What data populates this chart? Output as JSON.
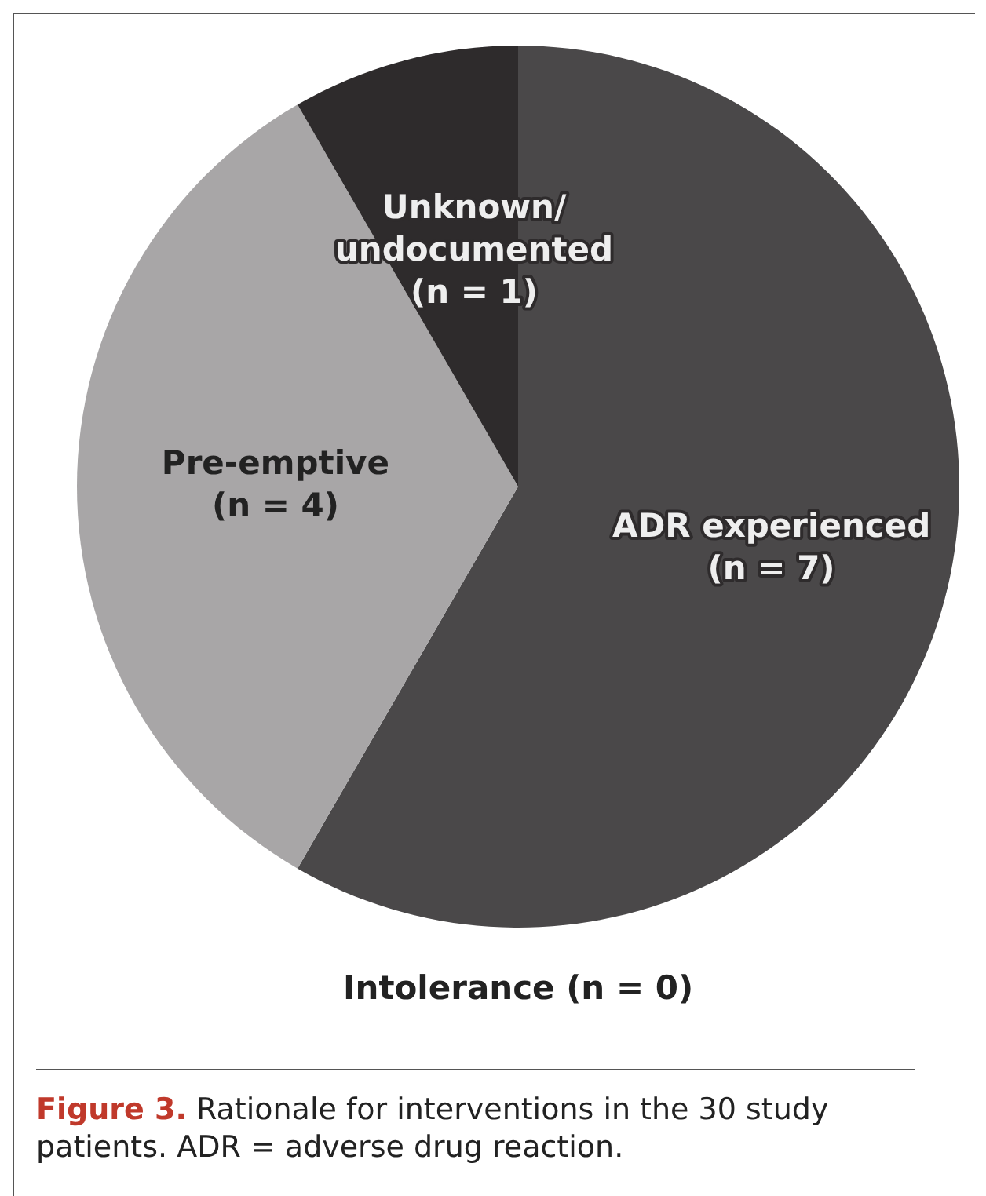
{
  "chart_data": {
    "type": "pie",
    "categories": [
      "ADR experienced (n = 7)",
      "Pre-emptive (n = 4)",
      "Unknown/undocumented (n = 1)",
      "Intolerance (n = 0)"
    ],
    "values": [
      7,
      4,
      1,
      0
    ],
    "colors": [
      "#4a4849",
      "#a8a6a7",
      "#2e2b2c",
      "#6a6869"
    ],
    "legend": false,
    "annotations": [
      "Figure 3. Rationale for interventions in the 30 study patients. ADR = adverse drug reaction."
    ]
  }
}
